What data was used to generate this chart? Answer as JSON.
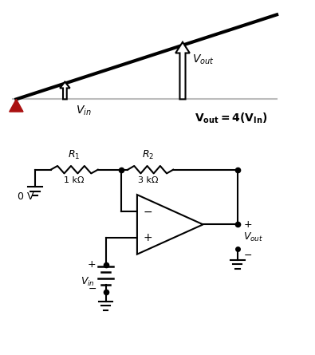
{
  "fig_width": 3.95,
  "fig_height": 4.45,
  "dpi": 100,
  "bg_color": "#ffffff",
  "title_formula": "$\\mathbf{V_{out} = 4(V_{In})}$",
  "line_color": "#000000",
  "triangle_color": "#aa1111",
  "R1_label": "$R_1$",
  "R1_value": "1 kΩ",
  "R2_label": "$R_2$",
  "R2_value": "3 kΩ",
  "Vin_label_top": "$V_{in}$",
  "Vout_label_top": "$V_{out}$",
  "Vin_label_bot": "$V_{in}$",
  "Vout_label_bot": "$V_{out}$",
  "zero_v_label": "0 V",
  "xlim": [
    0,
    10
  ],
  "ylim": [
    0,
    11.3
  ]
}
